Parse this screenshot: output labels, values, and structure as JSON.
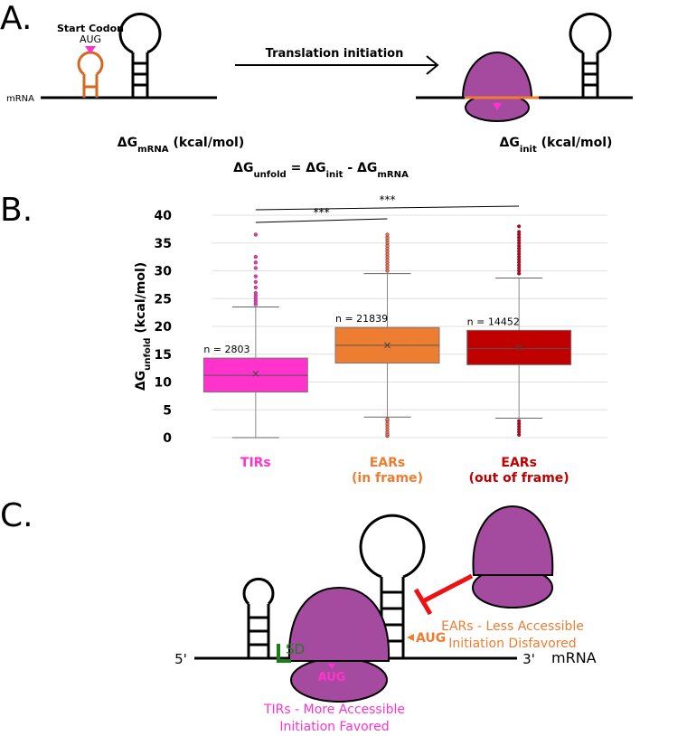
{
  "panel_a": {
    "label": "A.",
    "start_codon": "Start Codon",
    "codon": "AUG",
    "mrna": "mRNA",
    "arrow_label": "Translation initiation",
    "dg_mrna": [
      "ΔG",
      "mRNA",
      " (kcal/mol)"
    ],
    "dg_init": [
      "ΔG",
      "init",
      " (kcal/mol)"
    ],
    "equation": [
      "ΔG",
      "unfold",
      " = ΔG",
      "init",
      " - ΔG",
      "mRNA"
    ]
  },
  "chart_data": {
    "type": "box",
    "label": "B.",
    "ylabel": [
      "ΔG",
      "unfold",
      " (kcal/mol)"
    ],
    "categories": [
      [
        "TIRs"
      ],
      [
        "EARs",
        "(in frame)"
      ],
      [
        "EARs",
        "(out of frame)"
      ]
    ],
    "category_colors": [
      "#ff33cc",
      "#ed7d31",
      "#c00000"
    ],
    "n_labels": [
      "n = 2803",
      "n = 21839",
      "n = 14452"
    ],
    "significance_labels": [
      "***",
      "***"
    ],
    "ylim": [
      0,
      40
    ],
    "yticks": [
      0,
      5,
      10,
      15,
      20,
      25,
      30,
      35,
      40
    ],
    "grid": true,
    "boxes": [
      {
        "color": "#ff33cc",
        "whislo": 0,
        "q1": 8.2,
        "median": 11.2,
        "mean": 11.5,
        "q3": 14.3,
        "whishi": 23.5,
        "outliers": [
          24,
          24.5,
          25,
          25.5,
          26,
          27,
          28,
          29,
          30.5,
          31.5,
          32.5,
          36.5
        ]
      },
      {
        "color": "#ed7d31",
        "whislo": 3.7,
        "q1": 13.4,
        "median": 16.6,
        "mean": 16.6,
        "q3": 19.8,
        "whishi": 29.5,
        "outliers": [
          0.3,
          0.6,
          1,
          1.5,
          2,
          2.5,
          3,
          3.3,
          30,
          30.5,
          31,
          31.5,
          32,
          32.5,
          33,
          33.5,
          34,
          34.5,
          35,
          35.5,
          36,
          36.5
        ]
      },
      {
        "color": "#c00000",
        "whislo": 3.5,
        "q1": 13.1,
        "median": 16,
        "mean": 16.2,
        "q3": 19.3,
        "whishi": 28.7,
        "outliers": [
          0.5,
          1,
          1.5,
          2,
          2.5,
          3,
          29.5,
          30,
          30.5,
          31,
          31.5,
          32,
          32.5,
          33,
          33.5,
          34,
          34.5,
          35,
          35.5,
          36,
          36.5,
          37,
          38
        ]
      }
    ]
  },
  "panel_c": {
    "label": "C.",
    "five_prime": "5'",
    "three_prime": "3'",
    "mrna": "mRNA",
    "sd": "SD",
    "aug_ear": "AUG",
    "aug_tir": "AUG",
    "ear_text": [
      "EARs - Less Accessible",
      "Initiation Disfavored"
    ],
    "tir_text": [
      "TIRs - More Accessible",
      "Initiation Favored"
    ]
  }
}
